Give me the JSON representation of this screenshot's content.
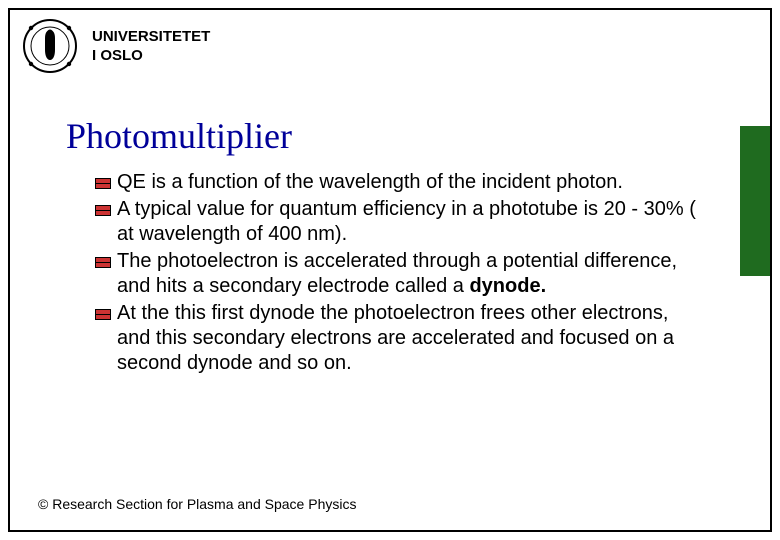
{
  "colors": {
    "border": "#000000",
    "title": "#000099",
    "text": "#000000",
    "bullet_fill": "#cc3333",
    "bullet_stroke": "#000000",
    "sidebar": "#1f6b1f",
    "background": "#ffffff"
  },
  "header": {
    "org_line1": "UNIVERSITETET",
    "org_line2": "I OSLO"
  },
  "title": "Photomultiplier",
  "bullets": [
    {
      "text": "QE is a function of the wavelength of the incident photon."
    },
    {
      "text": "A typical value for quantum efficiency in a phototube is 20 - 30% ( at wavelength of 400 nm)."
    },
    {
      "text": "The photoelectron is accelerated through a potential difference, and hits a secondary electrode called a <b>dynode.</b>"
    },
    {
      "text": "At the this first dynode the photoelectron frees other electrons, and this secondary electrons are accelerated and focused on a second dynode and so on."
    }
  ],
  "footer": "© Research Section for Plasma and Space Physics",
  "typography": {
    "title_fontsize": 36,
    "body_fontsize": 20,
    "header_fontsize": 15,
    "footer_fontsize": 14
  }
}
